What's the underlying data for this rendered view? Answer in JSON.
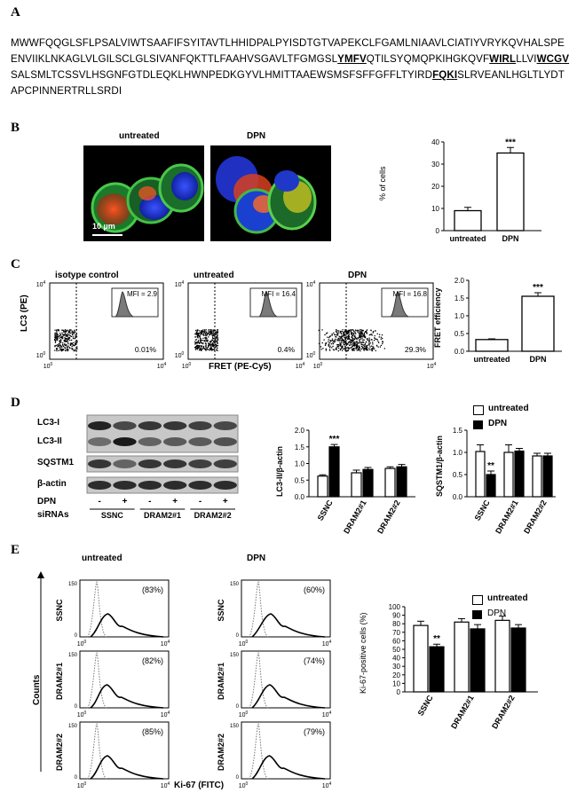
{
  "panelA": {
    "letter": "A",
    "seq_1": "MWWFQQGLSFLPSALVIWTSAAFIFSYITAVTLHHIDPALPYISDTGTVAPEKCLFGAMLNIAAVLCIATIYVRYKQVHALSPE",
    "seq_2": "ENVIIKLNKAGLVLGILSCLGLSIVANFQKTTLFAAHVSGAVLTFGMGSL",
    "motif_1": "YMFV",
    "seq_3": "QTILSYQMQPKIHGKQVF",
    "motif_2": "WIRL",
    "seq_4": "LLVI",
    "motif_3": "WCG",
    "motif_3b": "V",
    "seq_5": "SALSMLTCSSVLHSGNFGTDLEQKLHWNPEDKGYVLHMITTAAEWSMSFSFFGFFLTYIRD",
    "motif_4": "FQKI",
    "seq_6": "SLRVEANLHGLTLYDT",
    "seq_7": "APCPINNERTRLLSRDI"
  },
  "panelB": {
    "letter": "B",
    "img1_label": "untreated",
    "img2_label": "DPN",
    "scale_bar": "10 µm",
    "ylabel": "% of cells",
    "yticks": [
      "0",
      "10",
      "20",
      "30",
      "40"
    ],
    "sig": "***"
  },
  "panelC": {
    "letter": "C",
    "titles": [
      "isotype control",
      "untreated",
      "DPN"
    ],
    "mfi": [
      "MFI = 2.9",
      "MFI = 16.4",
      "MFI = 16.8"
    ],
    "pct": [
      "0.01%",
      "0.4%",
      "29.3%"
    ],
    "ylabel": "LC3 (PE)",
    "xlabel": "FRET (PE-Cy5)",
    "axis_lo": "10",
    "axis_lo_exp": "0",
    "axis_hi": "10",
    "axis_hi_exp": "4",
    "bar_ylabel": "FRET efficiency",
    "bar_yticks": [
      "0.0",
      "0.5",
      "1.0",
      "1.5",
      "2.0"
    ],
    "sig": "***"
  },
  "panelD": {
    "letter": "D",
    "blot_labels": [
      "LC3-I",
      "LC3-II",
      "SQSTM1",
      "β-actin"
    ],
    "dpn_label": "DPN",
    "sirna_label": "siRNAs",
    "signs": [
      "-",
      "+",
      "-",
      "+",
      "-",
      "+"
    ],
    "sirnas": [
      "SSNC",
      "DRAM2#1",
      "DRAM2#2"
    ],
    "chart1_ylabel": "LC3-II/β-actin",
    "chart1_yticks": [
      "0.0",
      "0.5",
      "1.0",
      "1.5",
      "2.0"
    ],
    "chart1_sig": "***",
    "chart2_ylabel": "SQSTM1/β-actin",
    "chart2_yticks": [
      "0.0",
      "0.5",
      "1.0",
      "1.5"
    ],
    "chart2_sig": "**",
    "legend": [
      "untreated",
      "DPN"
    ]
  },
  "panelE": {
    "letter": "E",
    "col_titles": [
      "untreated",
      "DPN"
    ],
    "row_labels": [
      "SSNC",
      "DRAM2#1",
      "DRAM2#2"
    ],
    "pct_untreated": [
      "(83%)",
      "(82%)",
      "(85%)"
    ],
    "pct_dpn": [
      "(60%)",
      "(74%)",
      "(79%)"
    ],
    "ylabel": "Counts",
    "xlabel": "Ki-67 (FITC)",
    "tick_0": "10",
    "tick_0_exp": "0",
    "tick_4": "10",
    "tick_4_exp": "4",
    "y_tick_0": "0",
    "y_tick_max": "150",
    "chart_ylabel": "Ki-67-positive cells (%)",
    "chart_yticks": [
      "0",
      "10",
      "20",
      "30",
      "40",
      "50",
      "60",
      "70",
      "80",
      "90",
      "100"
    ],
    "chart_sig": "**",
    "legend": [
      "untreated",
      "DPN"
    ]
  },
  "colors": {
    "bar_filled": "#000000",
    "bar_open": "#ffffff"
  },
  "chart_data": [
    {
      "type": "bar",
      "panel": "B",
      "categories": [
        "untreated",
        "DPN"
      ],
      "values": [
        9,
        35
      ],
      "errors": [
        1.5,
        2.5
      ],
      "ylabel": "% of cells",
      "ylim": [
        0,
        40
      ]
    },
    {
      "type": "bar",
      "panel": "C",
      "categories": [
        "untreated",
        "DPN"
      ],
      "values": [
        0.33,
        1.55
      ],
      "errors": [
        0.02,
        0.1
      ],
      "ylabel": "FRET efficiency",
      "ylim": [
        0,
        2
      ]
    },
    {
      "type": "bar",
      "panel": "D-left",
      "categories": [
        "SSNC",
        "DRAM2#1",
        "DRAM2#2"
      ],
      "ylabel": "LC3-II/β-actin",
      "ylim": [
        0,
        2
      ],
      "series": [
        {
          "name": "untreated",
          "values": [
            0.62,
            0.72,
            0.85
          ],
          "errors": [
            0.04,
            0.08,
            0.05
          ]
        },
        {
          "name": "DPN",
          "values": [
            1.5,
            0.82,
            0.9
          ],
          "errors": [
            0.07,
            0.06,
            0.07
          ]
        }
      ]
    },
    {
      "type": "bar",
      "panel": "D-right",
      "categories": [
        "SSNC",
        "DRAM2#1",
        "DRAM2#2"
      ],
      "ylabel": "SQSTM1/β-actin",
      "ylim": [
        0,
        1.5
      ],
      "series": [
        {
          "name": "untreated",
          "values": [
            1.02,
            1.0,
            0.92
          ],
          "errors": [
            0.15,
            0.17,
            0.06
          ]
        },
        {
          "name": "DPN",
          "values": [
            0.5,
            1.03,
            0.92
          ],
          "errors": [
            0.08,
            0.06,
            0.06
          ]
        }
      ]
    },
    {
      "type": "bar",
      "panel": "E",
      "categories": [
        "SSNC",
        "DRAM2#1",
        "DRAM2#2"
      ],
      "ylabel": "Ki-67-positive cells (%)",
      "ylim": [
        0,
        100
      ],
      "series": [
        {
          "name": "untreated",
          "values": [
            78,
            82,
            84
          ],
          "errors": [
            5,
            4,
            5
          ]
        },
        {
          "name": "DPN",
          "values": [
            53,
            74,
            75
          ],
          "errors": [
            3,
            5,
            4
          ]
        }
      ]
    }
  ]
}
